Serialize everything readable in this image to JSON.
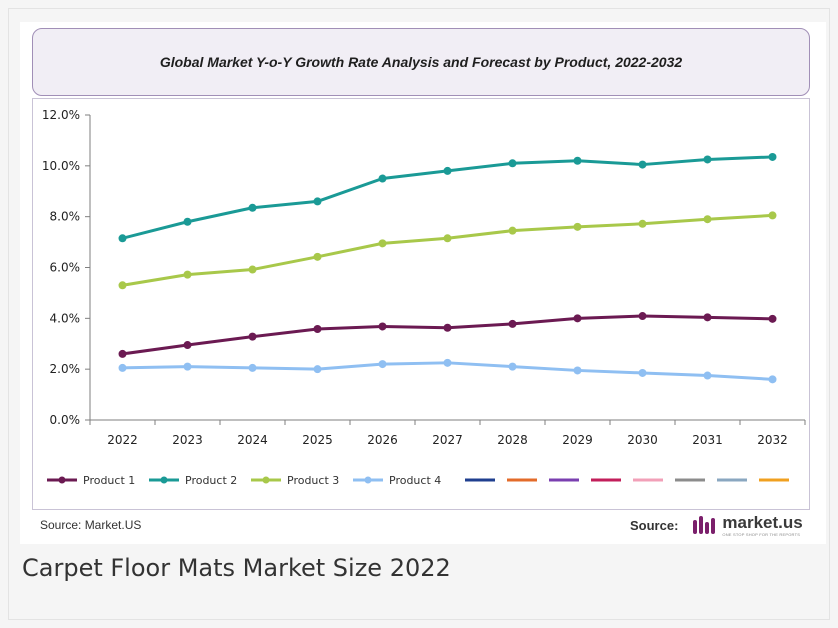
{
  "caption": "Carpet Floor Mats Market Size 2022",
  "source_left": "Source: Market.US",
  "source_right_label": "Source:",
  "logo": {
    "brand": "market.us",
    "tagline": "ONE STOP SHOP FOR THE REPORTS",
    "icon": "market-us-logo-icon",
    "color": "#7b1f6b"
  },
  "chart_data": {
    "type": "line",
    "title": "Global Market Y-o-Y  Growth Rate Analysis and Forecast by Product, 2022-2032",
    "x": [
      "2022",
      "2023",
      "2024",
      "2025",
      "2026",
      "2027",
      "2028",
      "2029",
      "2030",
      "2031",
      "2032"
    ],
    "ylim": [
      0,
      12
    ],
    "yticks": [
      "0.0%",
      "2.0%",
      "4.0%",
      "6.0%",
      "8.0%",
      "10.0%",
      "12.0%"
    ],
    "ytick_values": [
      0,
      2,
      4,
      6,
      8,
      10,
      12
    ],
    "grid": false,
    "legend_position": "bottom",
    "series": [
      {
        "name": "Product 1",
        "color": "#6b1a52",
        "values": [
          2.6,
          2.95,
          3.28,
          3.58,
          3.68,
          3.63,
          3.78,
          4.0,
          4.09,
          4.04,
          3.98
        ]
      },
      {
        "name": "Product 2",
        "color": "#1a9a96",
        "values": [
          7.15,
          7.8,
          8.35,
          8.6,
          9.5,
          9.8,
          10.1,
          10.2,
          10.05,
          10.25,
          10.35
        ]
      },
      {
        "name": "Product 3",
        "color": "#a8c84a",
        "values": [
          5.3,
          5.72,
          5.92,
          6.42,
          6.95,
          7.15,
          7.45,
          7.6,
          7.72,
          7.9,
          8.05
        ]
      },
      {
        "name": "Product 4",
        "color": "#8fbff2",
        "values": [
          2.05,
          2.1,
          2.05,
          2.0,
          2.2,
          2.25,
          2.1,
          1.95,
          1.85,
          1.75,
          1.6
        ]
      }
    ],
    "legend_extra_swatches": [
      "#1f3f8f",
      "#e36b2a",
      "#7a3fb0",
      "#c21e5a",
      "#f2a0b8",
      "#8c8c8c",
      "#8aa7c0",
      "#f0a020"
    ]
  }
}
